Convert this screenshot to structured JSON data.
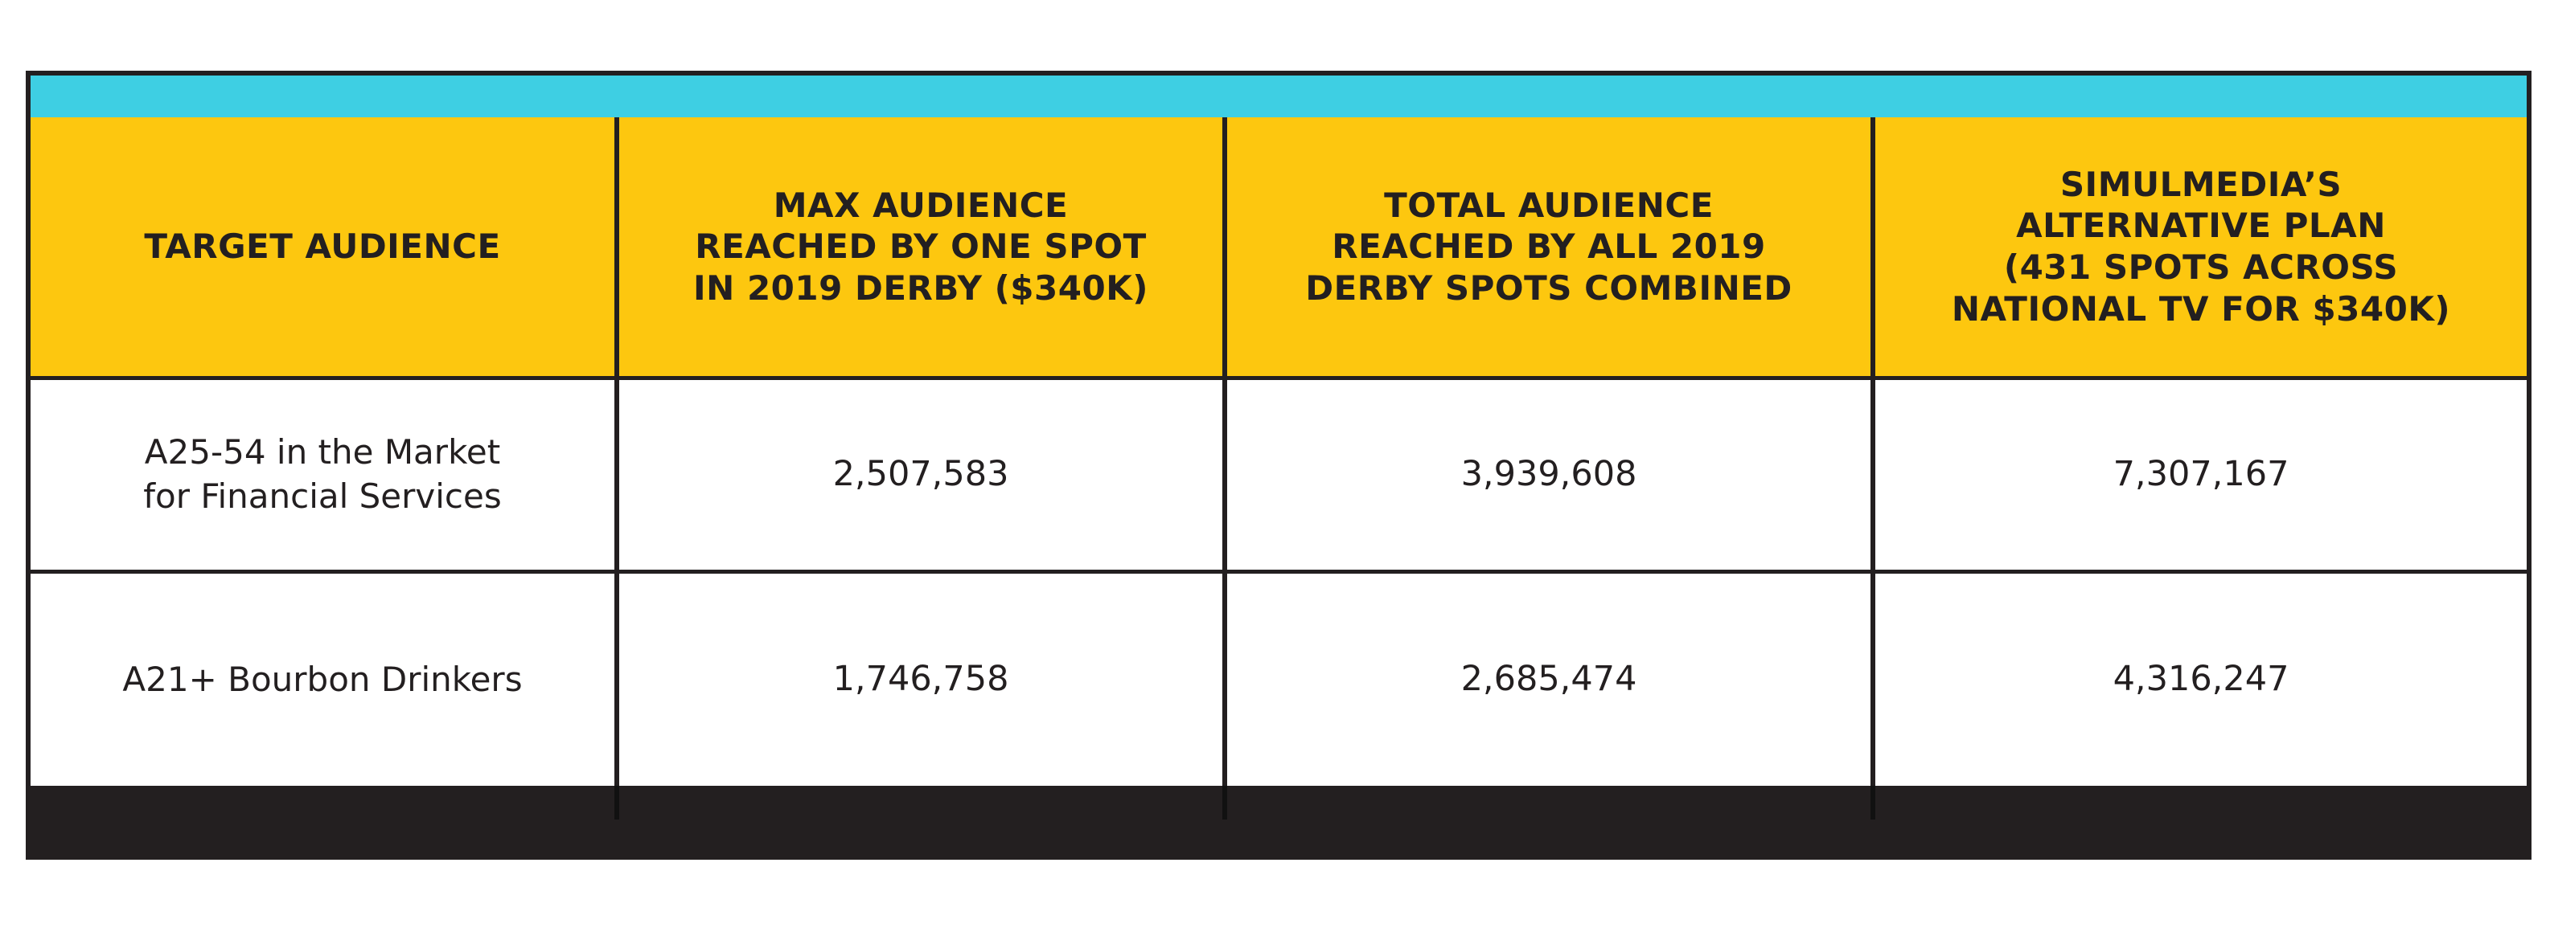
{
  "colors": {
    "accent_top": "#3ecfe3",
    "header_fill": "#fdc70f",
    "border": "#231f20",
    "cell_fill": "#ffffff"
  },
  "chart_data": {
    "type": "table",
    "columns": [
      "TARGET AUDIENCE",
      "MAX AUDIENCE\nREACHED BY ONE SPOT\nIN 2019 DERBY ($340K)",
      "TOTAL AUDIENCE\nREACHED BY ALL 2019\nDERBY SPOTS COMBINED",
      "SIMULMEDIA’S\nALTERNATIVE PLAN\n(431 SPOTS ACROSS\nNATIONAL TV FOR $340K)"
    ],
    "rows": [
      {
        "audience": "A25-54 in the Market\nfor Financial Services",
        "max_one_spot": "2,507,583",
        "total_all_spots": "3,939,608",
        "alternative_plan": "7,307,167"
      },
      {
        "audience": "A21+ Bourbon Drinkers",
        "max_one_spot": "1,746,758",
        "total_all_spots": "2,685,474",
        "alternative_plan": "4,316,247"
      }
    ]
  }
}
